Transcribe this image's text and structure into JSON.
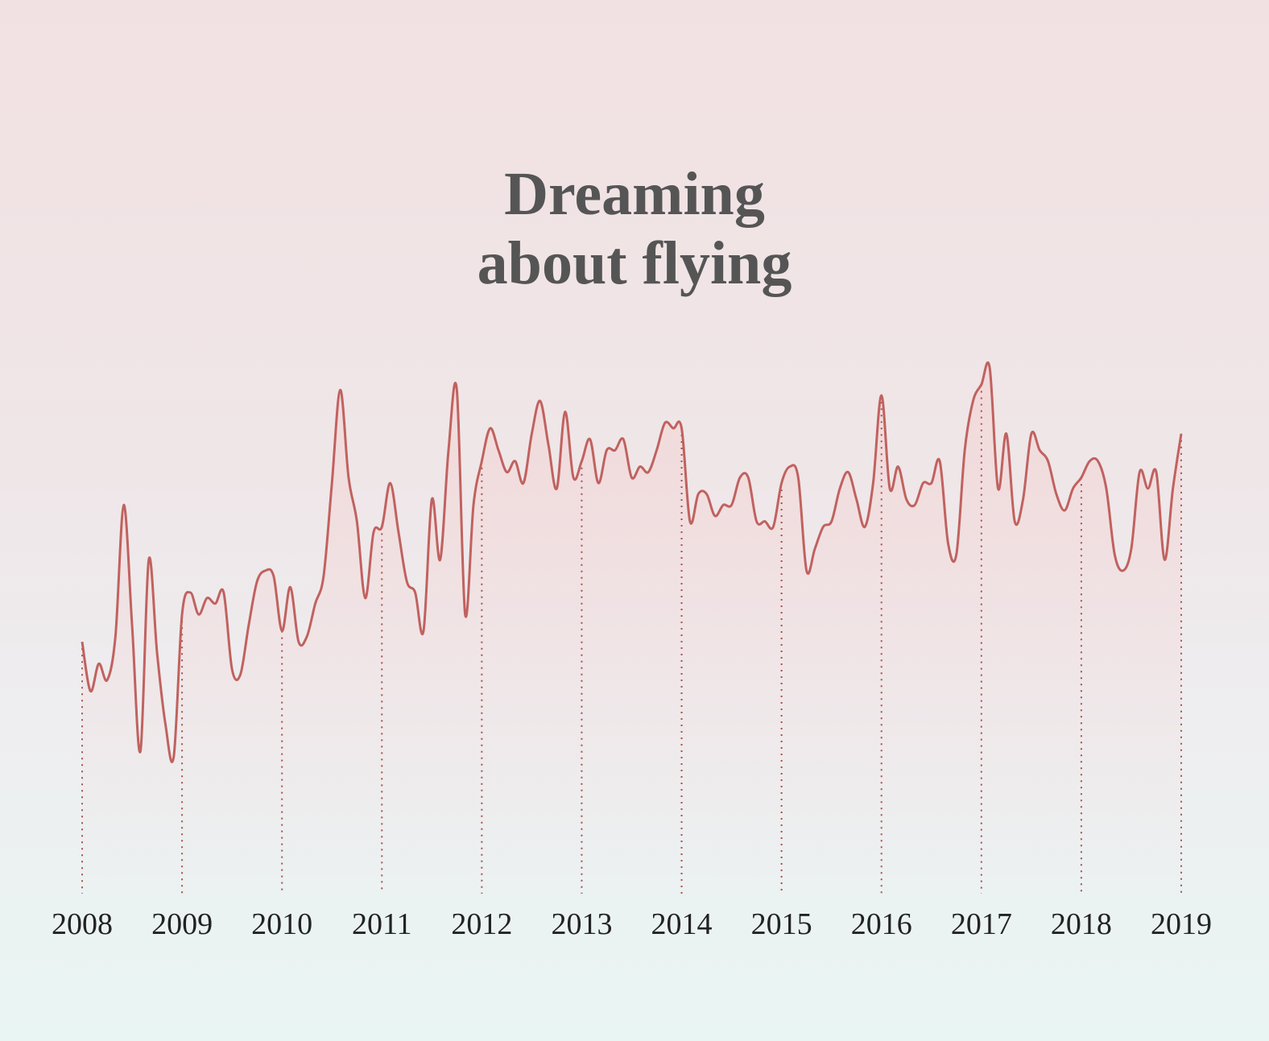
{
  "chart_data": {
    "type": "line",
    "title": "Dreaming about flying",
    "categories": [
      "2008",
      null,
      null,
      null,
      null,
      null,
      null,
      null,
      null,
      null,
      null,
      null,
      "2009",
      null,
      null,
      null,
      null,
      null,
      null,
      null,
      null,
      null,
      null,
      null,
      "2010",
      null,
      null,
      null,
      null,
      null,
      null,
      null,
      null,
      null,
      null,
      null,
      "2011",
      null,
      null,
      null,
      null,
      null,
      null,
      null,
      null,
      null,
      null,
      null,
      "2012",
      null,
      null,
      null,
      null,
      null,
      null,
      null,
      null,
      null,
      null,
      null,
      "2013",
      null,
      null,
      null,
      null,
      null,
      null,
      null,
      null,
      null,
      null,
      null,
      "2014",
      null,
      null,
      null,
      null,
      null,
      null,
      null,
      null,
      null,
      null,
      null,
      "2015",
      null,
      null,
      null,
      null,
      null,
      null,
      null,
      null,
      null,
      null,
      null,
      "2016",
      null,
      null,
      null,
      null,
      null,
      null,
      null,
      null,
      null,
      null,
      null,
      "2017",
      null,
      null,
      null,
      null,
      null,
      null,
      null,
      null,
      null,
      null,
      null,
      "2018",
      null,
      null,
      null,
      null,
      null,
      null,
      null,
      null,
      null,
      null,
      null,
      "2019"
    ],
    "values": [
      46,
      37,
      42,
      39,
      47,
      71,
      49,
      26,
      61,
      44,
      31,
      25,
      51,
      55,
      51,
      54,
      53,
      55,
      41,
      40,
      49,
      57,
      59,
      58,
      48,
      56,
      46,
      47,
      53,
      58,
      75,
      92,
      76,
      68,
      54,
      66,
      67,
      75,
      66,
      57,
      55,
      48,
      72,
      61,
      81,
      92,
      51,
      71,
      79,
      85,
      81,
      77,
      79,
      75,
      84,
      90,
      82,
      74,
      88,
      76,
      79,
      83,
      75,
      81,
      81,
      83,
      76,
      78,
      77,
      81,
      86,
      85,
      85,
      68,
      73,
      73,
      69,
      71,
      71,
      76,
      76,
      68,
      68,
      67,
      75,
      78,
      76,
      59,
      63,
      67,
      68,
      74,
      77,
      72,
      67,
      75,
      91,
      74,
      78,
      72,
      71,
      75,
      75,
      79,
      64,
      62,
      81,
      90,
      93,
      96,
      74,
      84,
      68,
      72,
      84,
      81,
      79,
      73,
      70,
      74,
      76,
      79,
      79,
      74,
      62,
      59,
      63,
      77,
      74,
      77,
      61,
      74,
      84
    ],
    "color": "#c0625f",
    "ylim": [
      0,
      100
    ]
  }
}
